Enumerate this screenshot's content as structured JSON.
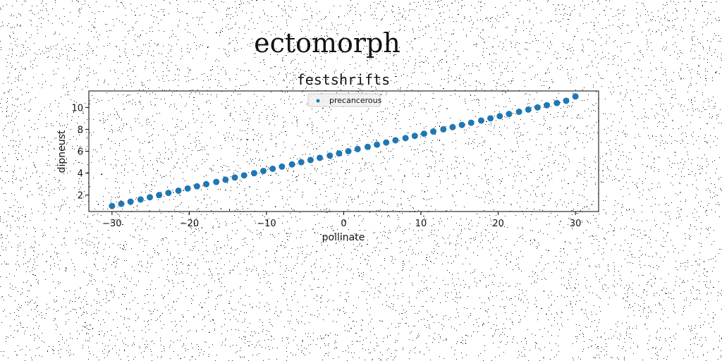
{
  "figure": {
    "suptitle": "ectomorph"
  },
  "chart_data": {
    "type": "scatter",
    "title": "festshrifts",
    "xlabel": "pollinate",
    "ylabel": "dipneust",
    "xlim": [
      -33,
      33
    ],
    "ylim": [
      0.5,
      11.5
    ],
    "xticks": [
      -30,
      -20,
      -10,
      0,
      10,
      20,
      30
    ],
    "xtick_labels": [
      "−30",
      "−20",
      "−10",
      "0",
      "10",
      "20",
      "30"
    ],
    "yticks": [
      2,
      4,
      6,
      8,
      10
    ],
    "ytick_labels": [
      "2",
      "4",
      "6",
      "8",
      "10"
    ],
    "grid": false,
    "legend": {
      "placement": "top-center"
    },
    "series": [
      {
        "name": "precancerous",
        "color": "#1f77b4",
        "x": [
          -30,
          -28.8,
          -27.6,
          -26.3,
          -25.1,
          -23.9,
          -22.7,
          -21.4,
          -20.2,
          -19,
          -17.8,
          -16.5,
          -15.3,
          -14.1,
          -12.9,
          -11.6,
          -10.4,
          -9.2,
          -8,
          -6.7,
          -5.5,
          -4.3,
          -3.1,
          -1.8,
          -0.6,
          0.6,
          1.8,
          3.1,
          4.3,
          5.5,
          6.7,
          8,
          9.2,
          10.4,
          11.6,
          12.9,
          14.1,
          15.3,
          16.5,
          17.8,
          19,
          20.2,
          21.4,
          22.7,
          23.9,
          25.1,
          26.3,
          27.6,
          28.8,
          30
        ],
        "y": [
          1,
          1.2,
          1.4,
          1.6,
          1.8,
          2,
          2.2,
          2.4,
          2.6,
          2.8,
          3,
          3.2,
          3.4,
          3.6,
          3.8,
          4,
          4.2,
          4.4,
          4.6,
          4.8,
          5,
          5.2,
          5.4,
          5.6,
          5.8,
          6,
          6.2,
          6.4,
          6.6,
          6.8,
          7,
          7.2,
          7.4,
          7.6,
          7.8,
          8,
          8.2,
          8.4,
          8.6,
          8.8,
          9,
          9.2,
          9.4,
          9.6,
          9.8,
          10,
          10.2,
          10.4,
          10.6,
          11
        ]
      }
    ]
  }
}
